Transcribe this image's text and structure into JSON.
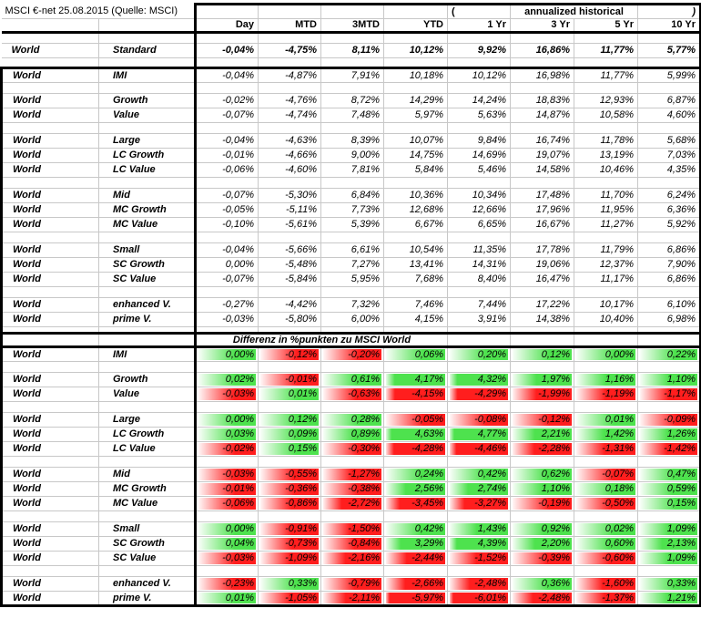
{
  "meta": {
    "title": "MSCI €-net 25.08.2015 (Quelle: MSCI)"
  },
  "colors": {
    "positive": "#4ee24e",
    "negative": "#ff1e1e",
    "gridline": "#c8c8c8",
    "border": "#000000"
  },
  "header": {
    "open_paren": "(",
    "annualized_label": "annualized historical",
    "close_paren": ")",
    "columns": [
      "Day",
      "MTD",
      "3MTD",
      "YTD",
      "1 Yr",
      "3 Yr",
      "5 Yr",
      "10 Yr"
    ]
  },
  "region_label": "World",
  "table1": {
    "groups": [
      {
        "bold": true,
        "rows": [
          {
            "region": "World",
            "label": "Standard",
            "values": [
              "-0,04%",
              "-4,75%",
              "8,11%",
              "10,12%",
              "9,92%",
              "16,86%",
              "11,77%",
              "5,77%"
            ]
          }
        ]
      },
      {
        "bold": false,
        "rows": [
          {
            "region": "World",
            "label": "IMI",
            "values": [
              "-0,04%",
              "-4,87%",
              "7,91%",
              "10,18%",
              "10,12%",
              "16,98%",
              "11,77%",
              "5,99%"
            ]
          }
        ]
      },
      {
        "bold": false,
        "rows": [
          {
            "region": "World",
            "label": "Growth",
            "values": [
              "-0,02%",
              "-4,76%",
              "8,72%",
              "14,29%",
              "14,24%",
              "18,83%",
              "12,93%",
              "6,87%"
            ]
          },
          {
            "region": "World",
            "label": "Value",
            "values": [
              "-0,07%",
              "-4,74%",
              "7,48%",
              "5,97%",
              "5,63%",
              "14,87%",
              "10,58%",
              "4,60%"
            ]
          }
        ]
      },
      {
        "bold": false,
        "rows": [
          {
            "region": "World",
            "label": "Large",
            "values": [
              "-0,04%",
              "-4,63%",
              "8,39%",
              "10,07%",
              "9,84%",
              "16,74%",
              "11,78%",
              "5,68%"
            ]
          },
          {
            "region": "World",
            "label": "LC Growth",
            "values": [
              "-0,01%",
              "-4,66%",
              "9,00%",
              "14,75%",
              "14,69%",
              "19,07%",
              "13,19%",
              "7,03%"
            ]
          },
          {
            "region": "World",
            "label": "LC Value",
            "values": [
              "-0,06%",
              "-4,60%",
              "7,81%",
              "5,84%",
              "5,46%",
              "14,58%",
              "10,46%",
              "4,35%"
            ]
          }
        ]
      },
      {
        "bold": false,
        "rows": [
          {
            "region": "World",
            "label": "Mid",
            "values": [
              "-0,07%",
              "-5,30%",
              "6,84%",
              "10,36%",
              "10,34%",
              "17,48%",
              "11,70%",
              "6,24%"
            ]
          },
          {
            "region": "World",
            "label": "MC Growth",
            "values": [
              "-0,05%",
              "-5,11%",
              "7,73%",
              "12,68%",
              "12,66%",
              "17,96%",
              "11,95%",
              "6,36%"
            ]
          },
          {
            "region": "World",
            "label": "MC Value",
            "values": [
              "-0,10%",
              "-5,61%",
              "5,39%",
              "6,67%",
              "6,65%",
              "16,67%",
              "11,27%",
              "5,92%"
            ]
          }
        ]
      },
      {
        "bold": false,
        "rows": [
          {
            "region": "World",
            "label": "Small",
            "values": [
              "-0,04%",
              "-5,66%",
              "6,61%",
              "10,54%",
              "11,35%",
              "17,78%",
              "11,79%",
              "6,86%"
            ]
          },
          {
            "region": "World",
            "label": "SC Growth",
            "values": [
              "0,00%",
              "-5,48%",
              "7,27%",
              "13,41%",
              "14,31%",
              "19,06%",
              "12,37%",
              "7,90%"
            ]
          },
          {
            "region": "World",
            "label": "SC Value",
            "values": [
              "-0,07%",
              "-5,84%",
              "5,95%",
              "7,68%",
              "8,40%",
              "16,47%",
              "11,17%",
              "6,86%"
            ]
          }
        ]
      },
      {
        "bold": false,
        "rows": [
          {
            "region": "World",
            "label": "enhanced V.",
            "values": [
              "-0,27%",
              "-4,42%",
              "7,32%",
              "7,46%",
              "7,44%",
              "17,22%",
              "10,17%",
              "6,10%"
            ]
          },
          {
            "region": "World",
            "label": "prime V.",
            "values": [
              "-0,03%",
              "-5,80%",
              "6,00%",
              "4,15%",
              "3,91%",
              "14,38%",
              "10,40%",
              "6,98%"
            ]
          }
        ]
      }
    ]
  },
  "section2": {
    "title": "Differenz in %punkten zu MSCI World"
  },
  "table2": {
    "groups": [
      {
        "rows": [
          {
            "region": "World",
            "label": "IMI",
            "values": [
              "0,00%",
              "-0,12%",
              "-0,20%",
              "0,06%",
              "0,20%",
              "0,12%",
              "0,00%",
              "0,22%"
            ]
          }
        ]
      },
      {
        "rows": [
          {
            "region": "World",
            "label": "Growth",
            "values": [
              "0,02%",
              "-0,01%",
              "0,61%",
              "4,17%",
              "4,32%",
              "1,97%",
              "1,16%",
              "1,10%"
            ]
          },
          {
            "region": "World",
            "label": "Value",
            "values": [
              "-0,03%",
              "0,01%",
              "-0,63%",
              "-4,15%",
              "-4,29%",
              "-1,99%",
              "-1,19%",
              "-1,17%"
            ]
          }
        ]
      },
      {
        "rows": [
          {
            "region": "World",
            "label": "Large",
            "values": [
              "0,00%",
              "0,12%",
              "0,28%",
              "-0,05%",
              "-0,08%",
              "-0,12%",
              "0,01%",
              "-0,09%"
            ]
          },
          {
            "region": "World",
            "label": "LC Growth",
            "values": [
              "0,03%",
              "0,09%",
              "0,89%",
              "4,63%",
              "4,77%",
              "2,21%",
              "1,42%",
              "1,26%"
            ]
          },
          {
            "region": "World",
            "label": "LC Value",
            "values": [
              "-0,02%",
              "0,15%",
              "-0,30%",
              "-4,28%",
              "-4,46%",
              "-2,28%",
              "-1,31%",
              "-1,42%"
            ]
          }
        ]
      },
      {
        "rows": [
          {
            "region": "World",
            "label": "Mid",
            "values": [
              "-0,03%",
              "-0,55%",
              "-1,27%",
              "0,24%",
              "0,42%",
              "0,62%",
              "-0,07%",
              "0,47%"
            ]
          },
          {
            "region": "World",
            "label": "MC Growth",
            "values": [
              "-0,01%",
              "-0,36%",
              "-0,38%",
              "2,56%",
              "2,74%",
              "1,10%",
              "0,18%",
              "0,59%"
            ]
          },
          {
            "region": "World",
            "label": "MC Value",
            "values": [
              "-0,06%",
              "-0,86%",
              "-2,72%",
              "-3,45%",
              "-3,27%",
              "-0,19%",
              "-0,50%",
              "0,15%"
            ]
          }
        ]
      },
      {
        "rows": [
          {
            "region": "World",
            "label": "Small",
            "values": [
              "0,00%",
              "-0,91%",
              "-1,50%",
              "0,42%",
              "1,43%",
              "0,92%",
              "0,02%",
              "1,09%"
            ]
          },
          {
            "region": "World",
            "label": "SC Growth",
            "values": [
              "0,04%",
              "-0,73%",
              "-0,84%",
              "3,29%",
              "4,39%",
              "2,20%",
              "0,60%",
              "2,13%"
            ]
          },
          {
            "region": "World",
            "label": "SC Value",
            "values": [
              "-0,03%",
              "-1,09%",
              "-2,16%",
              "-2,44%",
              "-1,52%",
              "-0,39%",
              "-0,60%",
              "1,09%"
            ]
          }
        ]
      },
      {
        "rows": [
          {
            "region": "World",
            "label": "enhanced V.",
            "values": [
              "-0,23%",
              "0,33%",
              "-0,79%",
              "-2,66%",
              "-2,48%",
              "0,36%",
              "-1,60%",
              "0,33%"
            ]
          },
          {
            "region": "World",
            "label": "prime V.",
            "values": [
              "0,01%",
              "-1,05%",
              "-2,11%",
              "-5,97%",
              "-6,01%",
              "-2,48%",
              "-1,37%",
              "1,21%"
            ]
          }
        ]
      }
    ]
  }
}
